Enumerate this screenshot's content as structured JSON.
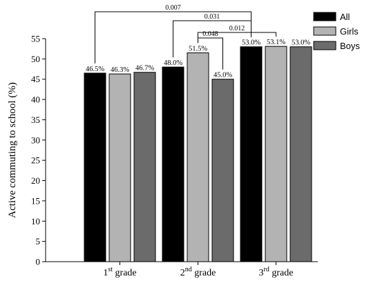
{
  "chart_data": {
    "type": "bar",
    "ylabel": "Active commuting to school (%)",
    "ylim": [
      0,
      55
    ],
    "yticks": [
      0,
      5,
      10,
      15,
      20,
      25,
      30,
      35,
      40,
      45,
      50,
      55
    ],
    "categories": [
      {
        "num": "1",
        "sup": "st",
        "rest": " grade"
      },
      {
        "num": "2",
        "sup": "nd",
        "rest": " grade"
      },
      {
        "num": "3",
        "sup": "rd",
        "rest": " grade"
      }
    ],
    "series": [
      {
        "name": "All",
        "color": "#000000",
        "values": [
          46.5,
          48.0,
          53.0
        ],
        "labels": [
          "46.5%",
          "48.0%",
          "53.0%"
        ]
      },
      {
        "name": "Girls",
        "color": "#b3b3b3",
        "values": [
          46.3,
          51.5,
          53.1
        ],
        "labels": [
          "46.3%",
          "51.5%",
          "53.1%"
        ]
      },
      {
        "name": "Boys",
        "color": "#6b6b6b",
        "values": [
          46.7,
          45.0,
          53.0
        ],
        "labels": [
          "46.7%",
          "45.0%",
          "53.0%"
        ]
      }
    ],
    "legend_position": "top-right",
    "grid": false,
    "significance": [
      {
        "label": "0.007",
        "from": [
          0,
          0
        ],
        "to": [
          2,
          0
        ]
      },
      {
        "label": "0.031",
        "from": [
          1,
          0
        ],
        "to": [
          2,
          0
        ]
      },
      {
        "label": "0.048",
        "from": [
          1,
          1
        ],
        "to": [
          1,
          2
        ]
      },
      {
        "label": "0.012",
        "from": [
          1,
          1
        ],
        "to": [
          2,
          1
        ]
      }
    ]
  }
}
